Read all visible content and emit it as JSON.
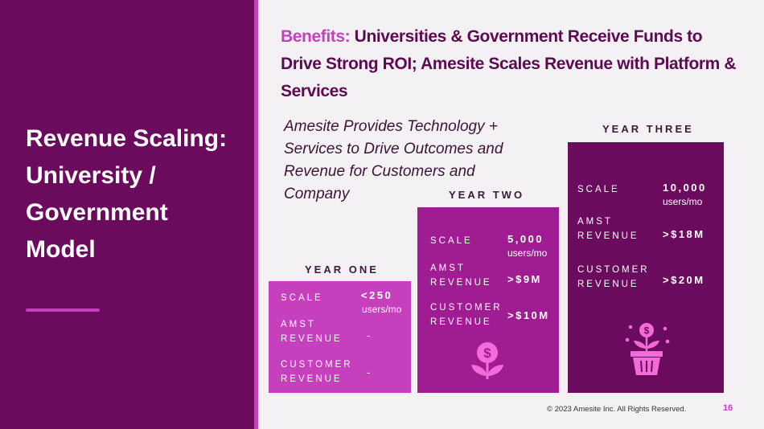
{
  "side": {
    "title": "Revenue Scaling: University / Government Model"
  },
  "headline": {
    "accent": "Benefits:",
    "text": " Universities & Government Receive Funds to Drive Strong ROI; Amesite Scales Revenue with Platform & Services"
  },
  "subtitle": "Amesite Provides Technology + Services to Drive Outcomes and Revenue for Customers and Company",
  "years": [
    {
      "label": "YEAR ONE",
      "scale_label": "SCALE",
      "scale_value": "<250",
      "scale_unit": "users/mo",
      "amst_label": "AMST REVENUE",
      "amst_value": "-",
      "customer_label": "CUSTOMER REVENUE",
      "customer_value": "-"
    },
    {
      "label": "YEAR TWO",
      "scale_label": "SCALE",
      "scale_value": "5,000",
      "scale_unit": "users/mo",
      "amst_label": "AMST REVENUE",
      "amst_value": ">$9M",
      "customer_label": "CUSTOMER REVENUE",
      "customer_value": ">$10M",
      "icon": "money-plant-icon"
    },
    {
      "label": "YEAR THREE",
      "scale_label": "SCALE",
      "scale_value": "10,000",
      "scale_unit": "users/mo",
      "amst_label": "AMST REVENUE",
      "amst_value": ">$18M",
      "customer_label": "CUSTOMER REVENUE",
      "customer_value": ">$20M",
      "icon": "potted-money-plant-icon"
    }
  ],
  "footer": {
    "copyright": "© 2023 Amesite Inc. All Rights Reserved.",
    "page": "16"
  },
  "colors": {
    "dark_purple": "#6b0b5e",
    "magenta": "#a01c93",
    "pink": "#c63fbd",
    "icon_pink": "#f26bd8"
  }
}
